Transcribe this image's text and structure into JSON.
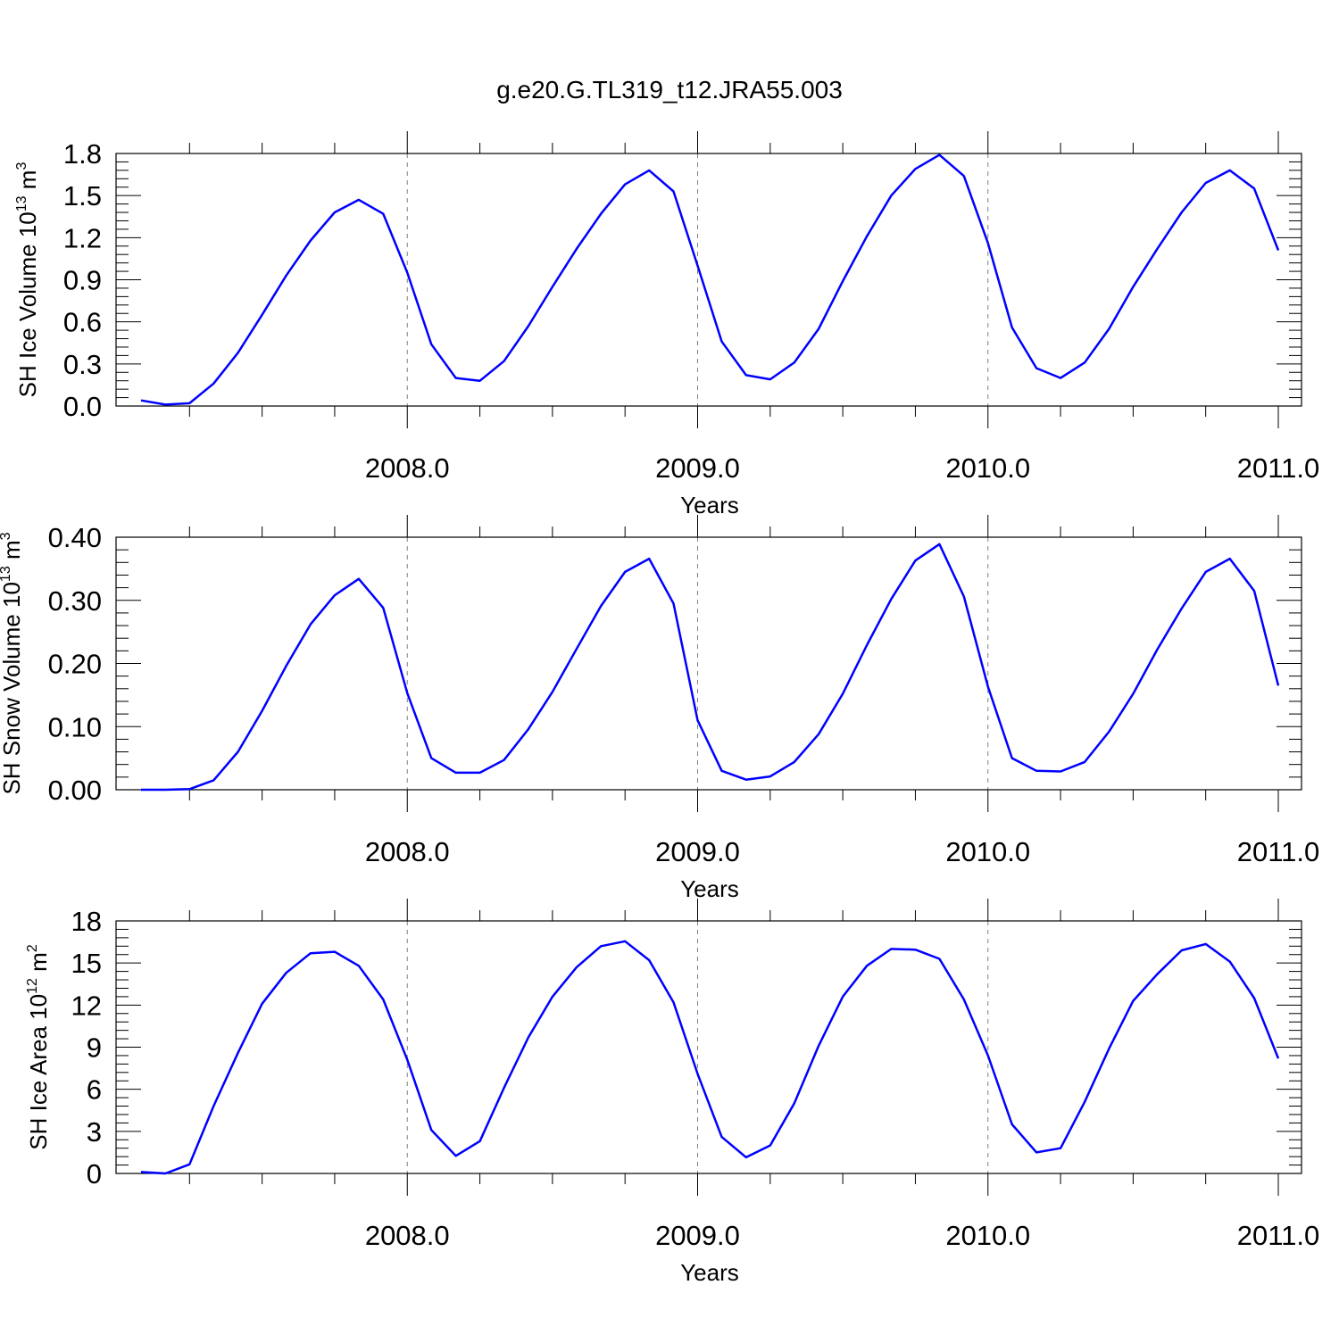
{
  "title": "g.e20.G.TL319_t12.JRA55.003",
  "colors": {
    "series": "#0000ff",
    "frame": "#000000",
    "gridline": "#808080"
  },
  "chart_data": [
    {
      "type": "line",
      "xlabel": "Years",
      "ylabel": "SH Ice Volume 10",
      "ylabel_exp": "13",
      "ylabel_unit": "m",
      "ylabel_unit_exp": "3",
      "ylim": [
        0,
        1.8
      ],
      "yticks": [
        0,
        0.3,
        0.6,
        0.9,
        1.2,
        1.5,
        1.8
      ],
      "ytick_labels": [
        "0.0",
        "0.3",
        "0.6",
        "0.9",
        "1.2",
        "1.5",
        "1.8"
      ],
      "xticks": [
        2008,
        2009,
        2010,
        2011
      ],
      "xtick_labels": [
        "2008.0",
        "2009.0",
        "2010.0",
        "2011.0"
      ],
      "grid": "dashed vertical lines at year ticks",
      "x": [
        2007.083,
        2007.167,
        2007.25,
        2007.333,
        2007.417,
        2007.5,
        2007.583,
        2007.667,
        2007.75,
        2007.833,
        2007.917,
        2008.0,
        2008.083,
        2008.167,
        2008.25,
        2008.333,
        2008.417,
        2008.5,
        2008.583,
        2008.667,
        2008.75,
        2008.833,
        2008.917,
        2009.0,
        2009.083,
        2009.167,
        2009.25,
        2009.333,
        2009.417,
        2009.5,
        2009.583,
        2009.667,
        2009.75,
        2009.833,
        2009.917,
        2010.0,
        2010.083,
        2010.167,
        2010.25,
        2010.333,
        2010.417,
        2010.5,
        2010.583,
        2010.667,
        2010.75,
        2010.833,
        2010.917,
        2011.0
      ],
      "values": [
        0.04,
        0.01,
        0.02,
        0.16,
        0.38,
        0.65,
        0.93,
        1.18,
        1.38,
        1.47,
        1.37,
        0.95,
        0.44,
        0.2,
        0.18,
        0.32,
        0.57,
        0.85,
        1.12,
        1.37,
        1.58,
        1.68,
        1.53,
        1.0,
        0.46,
        0.22,
        0.19,
        0.31,
        0.55,
        0.89,
        1.21,
        1.5,
        1.69,
        1.79,
        1.64,
        1.16,
        0.56,
        0.27,
        0.2,
        0.31,
        0.55,
        0.85,
        1.12,
        1.38,
        1.59,
        1.68,
        1.55,
        1.11
      ]
    },
    {
      "type": "line",
      "xlabel": "Years",
      "ylabel": "SH Snow Volume 10",
      "ylabel_exp": "13",
      "ylabel_unit": "m",
      "ylabel_unit_exp": "3",
      "ylim": [
        0,
        0.4
      ],
      "yticks": [
        0,
        0.1,
        0.2,
        0.3,
        0.4
      ],
      "ytick_labels": [
        "0.00",
        "0.10",
        "0.20",
        "0.30",
        "0.40"
      ],
      "xticks": [
        2008,
        2009,
        2010,
        2011
      ],
      "xtick_labels": [
        "2008.0",
        "2009.0",
        "2010.0",
        "2011.0"
      ],
      "grid": "dashed vertical lines at year ticks",
      "x": [
        2007.083,
        2007.167,
        2007.25,
        2007.333,
        2007.417,
        2007.5,
        2007.583,
        2007.667,
        2007.75,
        2007.833,
        2007.917,
        2008.0,
        2008.083,
        2008.167,
        2008.25,
        2008.333,
        2008.417,
        2008.5,
        2008.583,
        2008.667,
        2008.75,
        2008.833,
        2008.917,
        2009.0,
        2009.083,
        2009.167,
        2009.25,
        2009.333,
        2009.417,
        2009.5,
        2009.583,
        2009.667,
        2009.75,
        2009.833,
        2009.917,
        2010.0,
        2010.083,
        2010.167,
        2010.25,
        2010.333,
        2010.417,
        2010.5,
        2010.583,
        2010.667,
        2010.75,
        2010.833,
        2010.917,
        2011.0
      ],
      "values": [
        0.0,
        0.0,
        0.001,
        0.015,
        0.06,
        0.125,
        0.196,
        0.262,
        0.308,
        0.334,
        0.288,
        0.153,
        0.05,
        0.027,
        0.027,
        0.047,
        0.096,
        0.155,
        0.223,
        0.291,
        0.345,
        0.366,
        0.295,
        0.11,
        0.03,
        0.016,
        0.021,
        0.044,
        0.088,
        0.152,
        0.229,
        0.302,
        0.363,
        0.389,
        0.306,
        0.163,
        0.05,
        0.03,
        0.029,
        0.044,
        0.092,
        0.152,
        0.222,
        0.287,
        0.345,
        0.366,
        0.315,
        0.165
      ]
    },
    {
      "type": "line",
      "xlabel": "Years",
      "ylabel": "SH Ice Area 10",
      "ylabel_exp": "12",
      "ylabel_unit": "m",
      "ylabel_unit_exp": "2",
      "ylim": [
        0,
        18
      ],
      "yticks": [
        0,
        3,
        6,
        9,
        12,
        15,
        18
      ],
      "ytick_labels": [
        "0",
        "3",
        "6",
        "9",
        "12",
        "15",
        "18"
      ],
      "xticks": [
        2008,
        2009,
        2010,
        2011
      ],
      "xtick_labels": [
        "2008.0",
        "2009.0",
        "2010.0",
        "2011.0"
      ],
      "grid": "dashed vertical lines at year ticks",
      "x": [
        2007.083,
        2007.167,
        2007.25,
        2007.333,
        2007.417,
        2007.5,
        2007.583,
        2007.667,
        2007.75,
        2007.833,
        2007.917,
        2008.0,
        2008.083,
        2008.167,
        2008.25,
        2008.333,
        2008.417,
        2008.5,
        2008.583,
        2008.667,
        2008.75,
        2008.833,
        2008.917,
        2009.0,
        2009.083,
        2009.167,
        2009.25,
        2009.333,
        2009.417,
        2009.5,
        2009.583,
        2009.667,
        2009.75,
        2009.833,
        2009.917,
        2010.0,
        2010.083,
        2010.167,
        2010.25,
        2010.333,
        2010.417,
        2010.5,
        2010.583,
        2010.667,
        2010.75,
        2010.833,
        2010.917,
        2011.0
      ],
      "values": [
        0.1,
        0.0,
        0.65,
        4.8,
        8.6,
        12.1,
        14.3,
        15.7,
        15.8,
        14.8,
        12.4,
        8.1,
        3.1,
        1.25,
        2.3,
        6.1,
        9.7,
        12.6,
        14.7,
        16.2,
        16.55,
        15.2,
        12.2,
        7.1,
        2.6,
        1.15,
        2.0,
        5.0,
        9.1,
        12.6,
        14.8,
        16.0,
        15.95,
        15.3,
        12.4,
        8.4,
        3.5,
        1.5,
        1.8,
        5.1,
        8.9,
        12.3,
        14.2,
        15.9,
        16.35,
        15.1,
        12.5,
        8.2
      ]
    }
  ]
}
